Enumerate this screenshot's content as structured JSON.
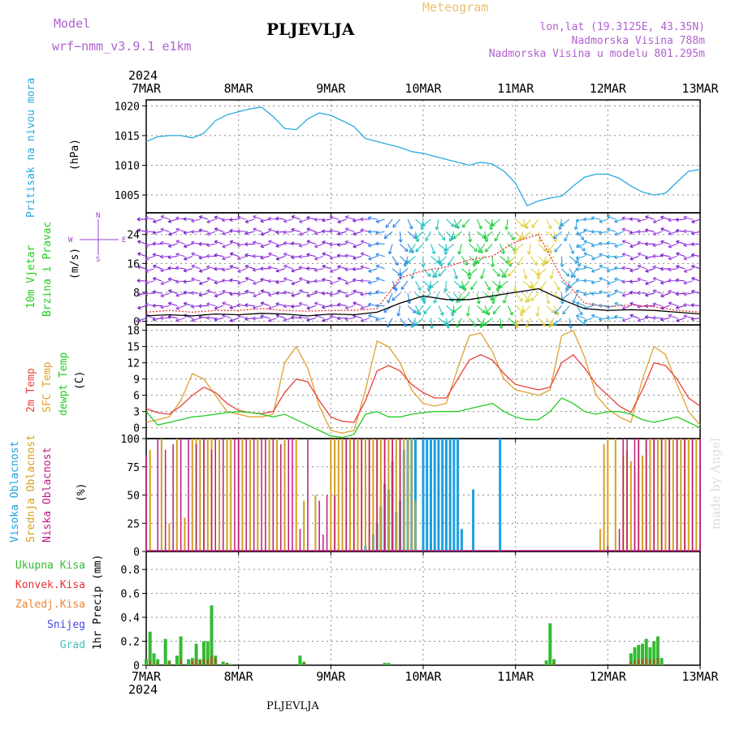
{
  "header": {
    "model_label": "Model",
    "model_name": "wrf−nmm_v3.9.1  e1km",
    "station": "PLJEVLJA",
    "title": "Meteogram",
    "lonlat": "lon,lat (19.3125E, 43.35N)",
    "elevation": "Nadmorska Visina 788m",
    "model_elevation": "Nadmorska Visina u modelu 801.295m"
  },
  "footer": {
    "station": "PLJEVLJA"
  },
  "watermark": "made by Angel",
  "time_axis": {
    "year": "2024",
    "labels": [
      "7MAR",
      "8MAR",
      "9MAR",
      "10MAR",
      "11MAR",
      "12MAR",
      "13MAR"
    ]
  },
  "colors": {
    "pressure": "#2aa8e0",
    "wind_label": "#22cc22",
    "temp2m": "#e8403a",
    "sfc": "#e0a030",
    "dew": "#22cc22",
    "high_cloud": "#1aa0e0",
    "mid_cloud": "#d4a020",
    "low_cloud": "#c01880",
    "total_precip": "#33bb33",
    "conv_precip": "#e83030",
    "frz_precip": "#f08030",
    "snow": "#4444ee",
    "grad": "#40c0c0"
  },
  "panels": {
    "pressure": {
      "label": "Pritisak na nivou mora",
      "unit": "(hPa)"
    },
    "wind": {
      "label1": "10m Vjetar",
      "label2": "Brzina i Pravac",
      "unit": "(m/s)",
      "compass": [
        "N",
        "S",
        "E",
        "W"
      ]
    },
    "temp": {
      "label1": "2m Temp",
      "label2": "SFC Temp",
      "label3": "dewpt Temp",
      "unit": "(C)"
    },
    "cloud": {
      "label1": "Visoka Oblacnost",
      "label2": "Srednja Oblacnost",
      "label3": "Niska Oblacnost",
      "unit": "(%)"
    },
    "precip": {
      "legend": [
        "Ukupna Kisa",
        "Konvek.Kisa",
        "Zaledj.Kisa",
        "Snijeg",
        "Grad"
      ],
      "ylabel": "1hr Precip (mm)"
    }
  },
  "chart_data": [
    {
      "type": "line",
      "ylim": [
        1002,
        1021
      ],
      "yticks": [
        1005,
        1010,
        1015,
        1020
      ],
      "x": [
        0,
        3,
        6,
        9,
        12,
        15,
        18,
        21,
        24,
        27,
        30,
        33,
        36,
        39,
        42,
        45,
        48,
        51,
        54,
        57,
        60,
        63,
        66,
        69,
        72,
        75,
        78,
        81,
        84,
        87,
        90,
        93,
        96,
        99,
        102,
        105,
        108,
        111,
        114,
        117,
        120,
        123,
        126,
        129,
        132,
        135,
        138,
        141,
        144
      ],
      "series": [
        {
          "values": [
            1014.0,
            1014.8,
            1015.0,
            1015.0,
            1014.6,
            1015.4,
            1017.5,
            1018.5,
            1019.0,
            1019.5,
            1019.8,
            1018.2,
            1016.2,
            1016.0,
            1017.8,
            1018.8,
            1018.4,
            1017.5,
            1016.5,
            1014.5,
            1014.0,
            1013.5,
            1013.0,
            1012.3,
            1012.0,
            1011.5,
            1011.0,
            1010.5,
            1010.0,
            1010.5,
            1010.2,
            1009.0,
            1007.0,
            1003.2,
            1004.0,
            1004.5,
            1004.8,
            1006.5,
            1008.0,
            1008.5,
            1008.5,
            1007.8,
            1006.5,
            1005.5,
            1005.0,
            1005.3,
            1007.2,
            1009.0,
            1009.3
          ]
        }
      ]
    },
    {
      "type": "line",
      "ylim": [
        -1,
        30
      ],
      "yticks": [
        0,
        8,
        16,
        24
      ],
      "x": [
        0,
        6,
        12,
        18,
        24,
        30,
        36,
        42,
        48,
        54,
        60,
        66,
        72,
        78,
        84,
        90,
        96,
        102,
        108,
        114,
        120,
        126,
        132,
        138,
        144
      ],
      "series": [
        {
          "values": [
            1.5,
            1.8,
            1.5,
            2.0,
            1.8,
            2.2,
            2.0,
            1.5,
            2.0,
            1.8,
            2.5,
            5.0,
            7.0,
            6.0,
            6.0,
            7.0,
            8.0,
            9.0,
            6.0,
            3.5,
            3.0,
            3.2,
            3.0,
            2.5,
            2.0
          ]
        },
        {
          "values": [
            2.5,
            3.0,
            2.5,
            3.0,
            3.0,
            3.5,
            3.0,
            2.8,
            3.0,
            3.0,
            3.5,
            12.0,
            14.0,
            15.0,
            17.0,
            18.0,
            22.0,
            24.0,
            12.0,
            5.0,
            4.0,
            4.5,
            4.0,
            3.0,
            2.5
          ]
        }
      ]
    },
    {
      "type": "line",
      "ylim": [
        -2,
        19
      ],
      "yticks": [
        0,
        3,
        6,
        9,
        12,
        15,
        18
      ],
      "x": [
        0,
        3,
        6,
        9,
        12,
        15,
        18,
        21,
        24,
        27,
        30,
        33,
        36,
        39,
        42,
        45,
        48,
        51,
        54,
        57,
        60,
        63,
        66,
        69,
        72,
        75,
        78,
        81,
        84,
        87,
        90,
        93,
        96,
        99,
        102,
        105,
        108,
        111,
        114,
        117,
        120,
        123,
        126,
        129,
        132,
        135,
        138,
        141,
        144
      ],
      "series": [
        {
          "values": [
            3.5,
            2.8,
            2.5,
            4.0,
            6.0,
            7.5,
            6.5,
            4.5,
            3.2,
            2.8,
            2.6,
            3.0,
            6.5,
            9.0,
            8.5,
            5.0,
            2.0,
            1.2,
            1.0,
            5.0,
            10.5,
            11.5,
            10.5,
            8.0,
            6.5,
            5.5,
            5.5,
            9.0,
            12.5,
            13.5,
            12.5,
            10.0,
            8.0,
            7.5,
            7.0,
            7.5,
            12.0,
            13.5,
            11.0,
            8.0,
            6.0,
            4.0,
            2.8,
            7.0,
            12.0,
            11.5,
            9.0,
            5.5,
            4.0
          ]
        },
        {
          "values": [
            1.0,
            1.5,
            2.0,
            5.0,
            10.0,
            9.0,
            6.0,
            3.0,
            2.5,
            2.0,
            2.0,
            2.5,
            12.0,
            15.0,
            11.0,
            4.0,
            -0.5,
            -1.0,
            -0.5,
            7.0,
            16.0,
            15.0,
            12.0,
            7.0,
            4.5,
            4.0,
            4.5,
            11.0,
            17.0,
            17.5,
            14.0,
            9.0,
            7.0,
            6.5,
            6.0,
            7.0,
            17.0,
            18.0,
            13.0,
            6.0,
            3.5,
            2.0,
            1.0,
            9.0,
            15.0,
            13.5,
            8.0,
            3.0,
            0.5
          ]
        },
        {
          "values": [
            3.0,
            0.5,
            1.0,
            1.5,
            2.0,
            2.2,
            2.5,
            2.8,
            3.0,
            2.8,
            2.5,
            2.0,
            2.5,
            1.5,
            0.5,
            -0.5,
            -1.5,
            -1.8,
            -1.2,
            2.5,
            3.0,
            2.0,
            2.0,
            2.5,
            2.8,
            3.0,
            3.0,
            3.0,
            3.5,
            4.0,
            4.5,
            3.0,
            2.0,
            1.5,
            1.5,
            3.0,
            5.5,
            4.5,
            3.0,
            2.5,
            3.0,
            3.0,
            2.5,
            1.5,
            1.0,
            1.5,
            2.0,
            1.0,
            0.0
          ]
        }
      ]
    },
    {
      "type": "bar",
      "ylim": [
        0,
        100
      ],
      "yticks": [
        0,
        25,
        50,
        75,
        100
      ],
      "series": [
        {
          "x": [
            57,
            59,
            60,
            61,
            62,
            63,
            64,
            65,
            66,
            67,
            68,
            69,
            70,
            72,
            73,
            74,
            75,
            76,
            77,
            78,
            79,
            80,
            81,
            82,
            85,
            92
          ],
          "values": [
            5,
            15,
            25,
            40,
            60,
            55,
            80,
            35,
            45,
            90,
            100,
            100,
            100,
            100,
            100,
            100,
            100,
            100,
            100,
            100,
            100,
            100,
            100,
            20,
            55,
            100
          ]
        },
        {
          "x": [
            1,
            4,
            6,
            8,
            10,
            12,
            13,
            14,
            15,
            16,
            17,
            19,
            21,
            22,
            24,
            25,
            27,
            29,
            32,
            34,
            36,
            39,
            41,
            44,
            48,
            49,
            50,
            51,
            52,
            53,
            54,
            55,
            56,
            57,
            58,
            59,
            60,
            61,
            62,
            63,
            64,
            65,
            66,
            67,
            68,
            69,
            70,
            118,
            119,
            120,
            122,
            124,
            125,
            126,
            127,
            128,
            129,
            130,
            131,
            132,
            133,
            134,
            135,
            136,
            137,
            138,
            139,
            140,
            141,
            142,
            143
          ],
          "values": [
            90,
            100,
            25,
            100,
            30,
            100,
            100,
            100,
            100,
            100,
            100,
            100,
            100,
            100,
            100,
            100,
            100,
            100,
            100,
            100,
            100,
            100,
            45,
            50,
            100,
            100,
            100,
            100,
            100,
            100,
            100,
            100,
            100,
            100,
            100,
            100,
            100,
            100,
            100,
            100,
            100,
            100,
            100,
            100,
            100,
            100,
            45,
            20,
            95,
            100,
            100,
            85,
            90,
            80,
            75,
            100,
            85,
            100,
            100,
            100,
            100,
            100,
            100,
            100,
            100,
            100,
            100,
            100,
            100,
            100,
            100
          ]
        },
        {
          "x": [
            0,
            3,
            5,
            7,
            9,
            11,
            13,
            15,
            17,
            18,
            20,
            23,
            24,
            26,
            28,
            30,
            31,
            33,
            35,
            37,
            38,
            40,
            42,
            45,
            46,
            47,
            49,
            52,
            54,
            56,
            58,
            60,
            62,
            64,
            66,
            120,
            123,
            124,
            125,
            127,
            128,
            130,
            132,
            134,
            136,
            138,
            140,
            142,
            144
          ],
          "values": [
            85,
            100,
            90,
            95,
            100,
            100,
            95,
            100,
            90,
            100,
            100,
            100,
            100,
            100,
            100,
            100,
            100,
            100,
            95,
            100,
            100,
            20,
            100,
            45,
            15,
            50,
            50,
            100,
            100,
            100,
            100,
            100,
            100,
            100,
            100,
            5,
            20,
            100,
            100,
            100,
            100,
            100,
            100,
            100,
            100,
            100,
            100,
            100,
            100
          ]
        }
      ]
    },
    {
      "type": "bar",
      "ylim": [
        0,
        0.95
      ],
      "yticks": [
        0,
        0.2,
        0.4,
        0.6,
        0.8
      ],
      "series": [
        {
          "x": [
            0,
            1,
            2,
            3,
            5,
            6,
            8,
            9,
            11,
            12,
            13,
            14,
            15,
            16,
            17,
            18,
            20,
            21,
            22,
            40,
            41,
            62,
            63,
            104,
            105,
            106,
            126,
            127,
            128,
            129,
            130,
            131,
            132,
            133,
            134
          ],
          "values": [
            0.05,
            0.28,
            0.1,
            0.05,
            0.22,
            0.04,
            0.08,
            0.24,
            0.05,
            0.06,
            0.18,
            0.05,
            0.2,
            0.2,
            0.5,
            0.08,
            0.03,
            0.02,
            0.01,
            0.08,
            0.03,
            0.02,
            0.02,
            0.04,
            0.35,
            0.05,
            0.1,
            0.15,
            0.17,
            0.18,
            0.22,
            0.15,
            0.2,
            0.24,
            0.06
          ]
        },
        {
          "x": [
            1,
            3,
            6,
            9,
            12,
            13,
            14,
            15,
            16,
            17,
            18,
            21,
            41,
            106,
            126,
            127,
            128,
            129,
            130,
            131,
            132,
            133
          ],
          "values": [
            0.04,
            0.02,
            0.03,
            0.05,
            0.04,
            0.05,
            0.04,
            0.05,
            0.05,
            0.08,
            0.06,
            0.02,
            0.02,
            0.02,
            0.03,
            0.04,
            0.05,
            0.05,
            0.06,
            0.05,
            0.05,
            0.06
          ]
        }
      ]
    }
  ]
}
